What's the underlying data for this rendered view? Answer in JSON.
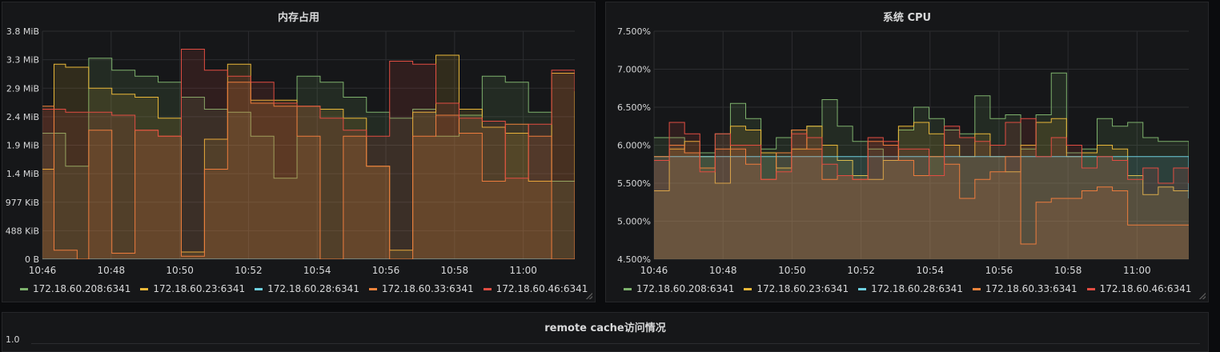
{
  "panels": {
    "memory": {
      "title": "内存占用"
    },
    "cpu": {
      "title": "系统 CPU"
    },
    "remote": {
      "title": "remote cache访问情况",
      "first_tick": "1.0"
    }
  },
  "series_colors": [
    "#7eb26d",
    "#eab839",
    "#6ed0e0",
    "#ef843c",
    "#e24d42"
  ],
  "chart_data": [
    {
      "type": "line",
      "title": "内存占用",
      "fill": true,
      "step": true,
      "grid": true,
      "legend": "bottom",
      "x_ticks": [
        "10:46",
        "10:48",
        "10:50",
        "10:52",
        "10:54",
        "10:56",
        "10:58",
        "11:00"
      ],
      "y_ticks": [
        "0 B",
        "488 KiB",
        "977 KiB",
        "1.4 MiB",
        "1.9 MiB",
        "2.4 MiB",
        "2.9 MiB",
        "3.3 MiB",
        "3.8 MiB"
      ],
      "x_minutes_range": [
        0,
        15.5
      ],
      "y_range_mib": [
        0,
        3.8
      ],
      "series": [
        {
          "name": "172.18.60.208:6341",
          "color": "#7eb26d",
          "values": [
            2.1,
            2.1,
            1.55,
            1.55,
            3.35,
            3.35,
            3.15,
            3.15,
            3.05,
            3.05,
            2.95,
            2.95,
            2.7,
            2.7,
            2.5,
            2.5,
            2.45,
            2.45,
            2.05,
            2.05,
            1.35,
            1.35,
            3.05,
            3.05,
            2.95,
            2.95,
            2.7,
            2.7,
            2.45,
            2.45,
            2.35,
            2.35,
            2.5,
            2.5,
            2.05,
            2.05,
            2.4,
            2.4,
            3.05,
            3.05,
            2.95,
            2.95,
            2.45,
            2.45,
            1.3,
            1.3,
            0.15
          ]
        },
        {
          "name": "172.18.60.23:6341",
          "color": "#eab839",
          "values": [
            1.5,
            3.25,
            3.2,
            3.2,
            2.85,
            2.85,
            2.75,
            2.75,
            2.7,
            2.7,
            2.35,
            2.35,
            0.12,
            0.12,
            2.0,
            2.0,
            3.25,
            3.25,
            2.65,
            2.65,
            2.65,
            2.65,
            2.55,
            2.55,
            2.5,
            2.5,
            2.35,
            2.35,
            1.55,
            1.55,
            0.15,
            0.15,
            2.45,
            2.45,
            3.4,
            3.4,
            2.5,
            2.5,
            2.2,
            2.2,
            2.1,
            2.1,
            1.3,
            1.3,
            3.1,
            3.1,
            1.3
          ]
        },
        {
          "name": "172.18.60.28:6341",
          "color": "#6ed0e0",
          "values": [
            0,
            0,
            0,
            0,
            0,
            0,
            0,
            0,
            0,
            0,
            0,
            0,
            0,
            0,
            0,
            0,
            0,
            0,
            0,
            0,
            0,
            0,
            0,
            0,
            0,
            0,
            0,
            0,
            0,
            0,
            0,
            0,
            0,
            0,
            0,
            0,
            0,
            0,
            0,
            0,
            0,
            0,
            0,
            0,
            0,
            0,
            0.15
          ]
        },
        {
          "name": "172.18.60.33:6341",
          "color": "#ef843c",
          "values": [
            2.55,
            0.15,
            0.15,
            0.0,
            2.15,
            2.15,
            0.1,
            0.1,
            2.15,
            2.15,
            2.05,
            2.05,
            0.05,
            0.05,
            1.5,
            1.5,
            2.95,
            2.95,
            2.6,
            2.6,
            2.55,
            2.55,
            2.05,
            2.05,
            0.0,
            0.0,
            2.05,
            2.05,
            1.55,
            1.55,
            0.0,
            0.0,
            2.05,
            2.05,
            2.4,
            2.4,
            2.1,
            2.1,
            1.3,
            1.3,
            2.25,
            2.25,
            2.05,
            2.05,
            0.0,
            0.0,
            1.3
          ]
        },
        {
          "name": "172.18.60.46:6341",
          "color": "#e24d42",
          "values": [
            2.5,
            2.5,
            2.45,
            2.45,
            2.45,
            2.45,
            2.4,
            2.4,
            2.15,
            2.15,
            2.05,
            2.05,
            3.5,
            3.5,
            3.15,
            3.15,
            3.05,
            3.05,
            2.95,
            2.95,
            2.6,
            2.6,
            2.55,
            2.55,
            2.35,
            2.35,
            2.15,
            2.15,
            2.05,
            2.05,
            3.3,
            3.3,
            3.25,
            3.25,
            2.6,
            2.6,
            2.35,
            2.35,
            2.3,
            2.3,
            1.35,
            1.35,
            2.25,
            2.25,
            3.15,
            3.15,
            2.8
          ]
        }
      ]
    },
    {
      "type": "line",
      "title": "系统 CPU",
      "fill": true,
      "step": true,
      "grid": true,
      "legend": "bottom",
      "x_ticks": [
        "10:46",
        "10:48",
        "10:50",
        "10:52",
        "10:54",
        "10:56",
        "10:58",
        "11:00"
      ],
      "y_ticks": [
        "4.500%",
        "5.000%",
        "5.500%",
        "6.000%",
        "6.500%",
        "7.000%",
        "7.500%"
      ],
      "x_minutes_range": [
        0,
        15.5
      ],
      "y_range": [
        4.5,
        7.5
      ],
      "series": [
        {
          "name": "172.18.60.208:6341",
          "color": "#7eb26d",
          "values": [
            6.1,
            6.1,
            5.9,
            5.9,
            6.15,
            6.55,
            6.35,
            5.95,
            6.1,
            6.2,
            6.25,
            6.6,
            6.25,
            6.05,
            5.95,
            5.8,
            6.2,
            6.5,
            6.35,
            6.2,
            6.15,
            6.65,
            6.35,
            6.4,
            5.95,
            6.4,
            6.95,
            5.9,
            5.95,
            6.35,
            6.25,
            6.3,
            6.1,
            6.05,
            6.05,
            5.3
          ]
        },
        {
          "name": "172.18.60.23:6341",
          "color": "#eab839",
          "values": [
            5.4,
            5.95,
            6.05,
            5.85,
            5.5,
            6.25,
            6.2,
            5.9,
            5.7,
            5.95,
            6.25,
            6.0,
            5.8,
            5.6,
            5.55,
            5.8,
            6.25,
            6.3,
            6.15,
            6.0,
            5.85,
            6.15,
            5.85,
            5.65,
            6.0,
            6.3,
            6.35,
            5.85,
            5.9,
            6.0,
            5.95,
            5.6,
            5.35,
            5.45,
            5.4,
            5.4
          ]
        },
        {
          "name": "172.18.60.28:6341",
          "color": "#6ed0e0",
          "values": [
            5.85,
            5.85,
            5.85,
            5.85,
            5.85,
            5.85,
            5.85,
            5.85,
            5.85,
            5.85,
            5.85,
            5.85,
            5.85,
            5.85,
            5.85,
            5.85,
            5.85,
            5.85,
            5.85,
            5.85,
            5.85,
            5.85,
            5.85,
            5.85,
            5.85,
            5.85,
            5.85,
            5.85,
            5.85,
            5.85,
            5.85,
            5.85,
            5.85,
            5.85,
            5.85,
            5.3
          ]
        },
        {
          "name": "172.18.60.33:6341",
          "color": "#ef843c",
          "values": [
            5.85,
            6.0,
            5.9,
            5.7,
            5.95,
            5.95,
            5.75,
            5.55,
            5.9,
            6.2,
            5.95,
            5.55,
            5.6,
            5.55,
            6.05,
            6.0,
            5.8,
            5.6,
            5.85,
            5.75,
            5.3,
            5.55,
            5.65,
            5.85,
            4.7,
            5.25,
            5.3,
            5.3,
            5.4,
            5.45,
            5.4,
            4.95,
            4.95,
            4.95,
            4.95,
            4.95
          ]
        },
        {
          "name": "172.18.60.46:6341",
          "color": "#e24d42",
          "values": [
            5.8,
            6.3,
            6.15,
            5.65,
            6.15,
            6.0,
            6.0,
            5.55,
            5.65,
            6.15,
            6.1,
            5.75,
            5.6,
            5.55,
            6.1,
            6.05,
            5.95,
            5.95,
            5.6,
            6.25,
            6.1,
            6.05,
            6.0,
            6.3,
            6.35,
            5.85,
            6.1,
            6.0,
            5.7,
            5.85,
            5.8,
            5.55,
            5.7,
            5.5,
            5.7,
            5.5
          ]
        }
      ]
    }
  ]
}
